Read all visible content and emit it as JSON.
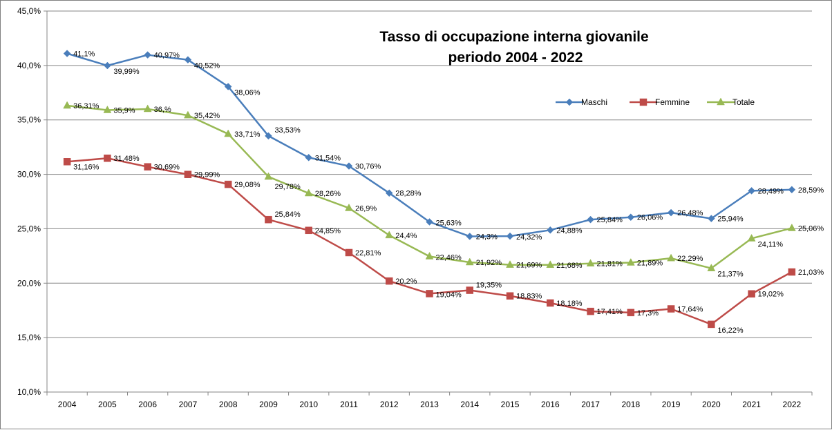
{
  "chart_data": {
    "type": "line",
    "title": "Tasso di occupazione interna giovanile",
    "subtitle": "periodo 2004 - 2022",
    "xlabel": "",
    "ylabel": "",
    "ylim": [
      10,
      45
    ],
    "y_ticks": [
      10,
      15,
      20,
      25,
      30,
      35,
      40,
      45
    ],
    "y_tick_labels": [
      "10,0%",
      "15,0%",
      "20,0%",
      "25,0%",
      "30,0%",
      "35,0%",
      "40,0%",
      "45,0%"
    ],
    "grid": true,
    "legend_position": "top-right",
    "categories": [
      "2004",
      "2005",
      "2006",
      "2007",
      "2008",
      "2009",
      "2010",
      "2011",
      "2012",
      "2013",
      "2014",
      "2015",
      "2016",
      "2017",
      "2018",
      "2019",
      "2020",
      "2021",
      "2022"
    ],
    "series": [
      {
        "name": "Maschi",
        "color": "#4a7ebb",
        "marker": "diamond",
        "values": [
          41.1,
          39.99,
          40.97,
          40.52,
          38.06,
          33.53,
          31.54,
          30.76,
          28.28,
          25.63,
          24.3,
          24.32,
          24.88,
          25.84,
          26.06,
          26.48,
          25.94,
          28.49,
          28.59
        ],
        "labels": [
          "41,1%",
          "39,99%",
          "40,97%",
          "40,52%",
          "38,06%",
          "33,53%",
          "31,54%",
          "30,76%",
          "28,28%",
          "25,63%",
          "24,3%",
          "24,32%",
          "24,88%",
          "25,84%",
          "26,06%",
          "26,48%",
          "25,94%",
          "28,49%",
          "28,59%"
        ]
      },
      {
        "name": "Femmine",
        "color": "#be4b48",
        "marker": "square",
        "values": [
          31.16,
          31.48,
          30.69,
          29.99,
          29.08,
          25.84,
          24.85,
          22.81,
          20.2,
          19.04,
          19.35,
          18.83,
          18.18,
          17.41,
          17.3,
          17.64,
          16.22,
          19.02,
          21.03
        ],
        "labels": [
          "31,16%",
          "31,48%",
          "30,69%",
          "29,99%",
          "29,08%",
          "25,84%",
          "24,85%",
          "22,81%",
          "20,2%",
          "19,04%",
          "19,35%",
          "18,83%",
          "18,18%",
          "17,41%",
          "17,3%",
          "17,64%",
          "16,22%",
          "19,02%",
          "21,03%"
        ]
      },
      {
        "name": "Totale",
        "color": "#98b954",
        "marker": "triangle",
        "values": [
          36.31,
          35.9,
          36.0,
          35.42,
          33.71,
          29.78,
          28.26,
          26.9,
          24.4,
          22.46,
          21.92,
          21.69,
          21.68,
          21.81,
          21.89,
          22.29,
          21.37,
          24.11,
          25.06
        ],
        "labels": [
          "36,31%",
          "35,9%",
          "36,%",
          "35,42%",
          "33,71%",
          "29,78%",
          "28,26%",
          "26,9%",
          "24,4%",
          "22,46%",
          "21,92%",
          "21,69%",
          "21,68%",
          "21,81%",
          "21,89%",
          "22,29%",
          "21,37%",
          "24,11%",
          "25,06%"
        ]
      }
    ]
  }
}
